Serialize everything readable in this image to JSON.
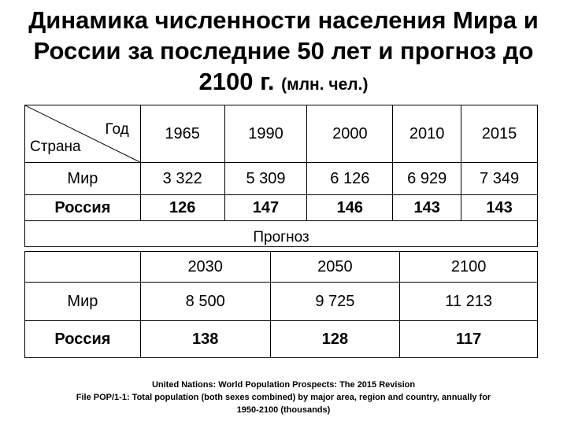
{
  "title": {
    "line1": "Динамика численности населения Мира и",
    "line2": "России за последние 50 лет и прогноз до",
    "line3_main": "2100 г.",
    "line3_unit": "(млн. чел.)"
  },
  "table1": {
    "header_year": "Год",
    "header_country": "Страна",
    "years": [
      "1965",
      "1990",
      "2000",
      "2010",
      "2015"
    ],
    "rows": [
      {
        "country": "Мир",
        "values": [
          "3 322",
          "5 309",
          "6 126",
          "6 929",
          "7 349"
        ]
      },
      {
        "country": "Россия",
        "values": [
          "126",
          "147",
          "146",
          "143",
          "143"
        ]
      }
    ],
    "forecast_label": "Прогноз"
  },
  "table2": {
    "years": [
      "2030",
      "2050",
      "2100"
    ],
    "rows": [
      {
        "country": "Мир",
        "values": [
          "8 500",
          "9 725",
          "11 213"
        ]
      },
      {
        "country": "Россия",
        "values": [
          "138",
          "128",
          "117"
        ]
      }
    ]
  },
  "source": {
    "line1": "United Nations: World Population Prospects: The 2015 Revision",
    "line2": "File POP/1-1: Total population (both sexes combined) by major area, region and country, annually for",
    "line3": "1950-2100 (thousands)"
  }
}
